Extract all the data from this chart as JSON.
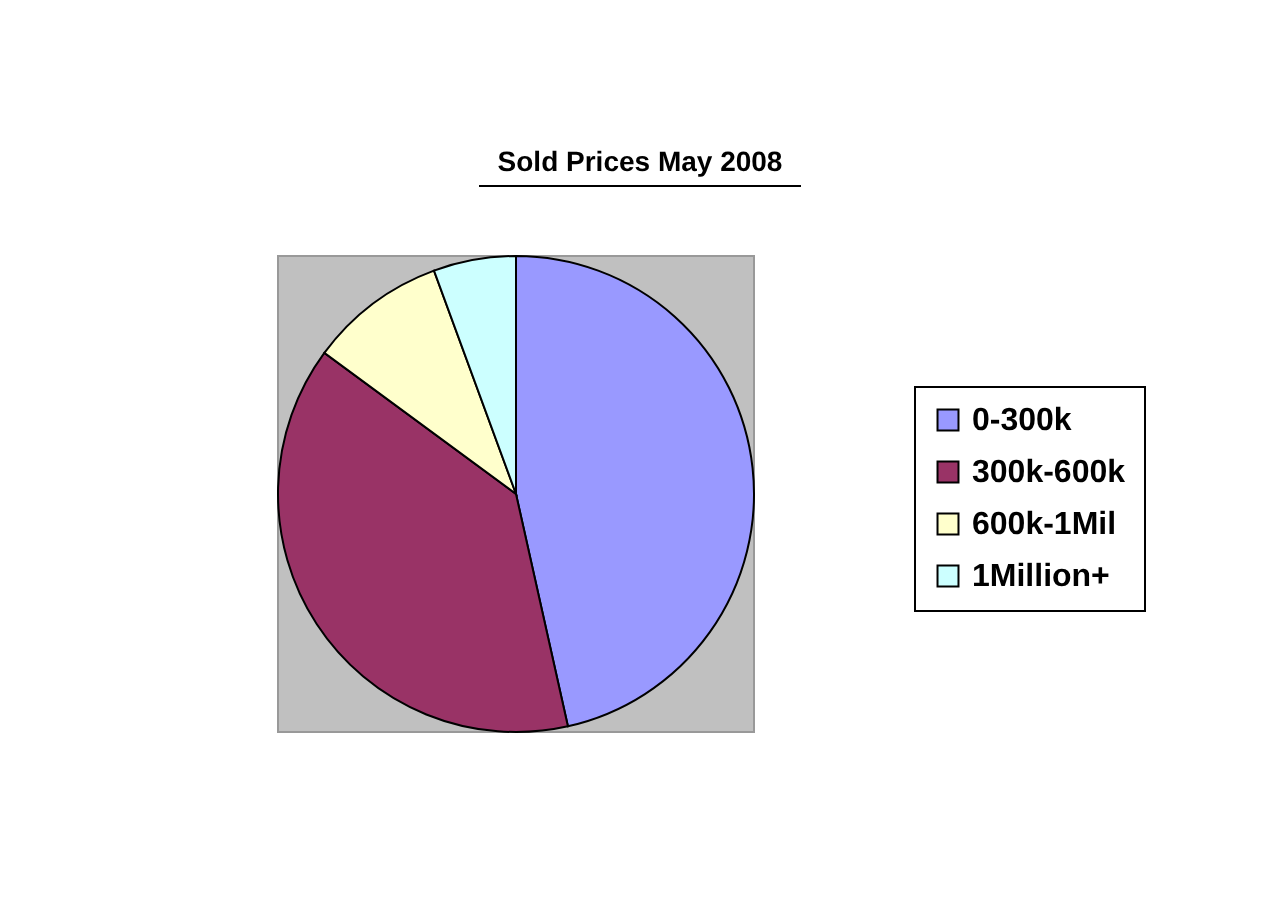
{
  "chart_data": {
    "type": "pie",
    "title": "Sold Prices May 2008",
    "categories": [
      "0-300k",
      "300k-600k",
      "600k-1Mil",
      "1Million+"
    ],
    "values": [
      46.5,
      38.6,
      9.3,
      5.6
    ],
    "colors": [
      "#9999ff",
      "#993366",
      "#ffffcc",
      "#ccffff"
    ],
    "legend": "right"
  }
}
